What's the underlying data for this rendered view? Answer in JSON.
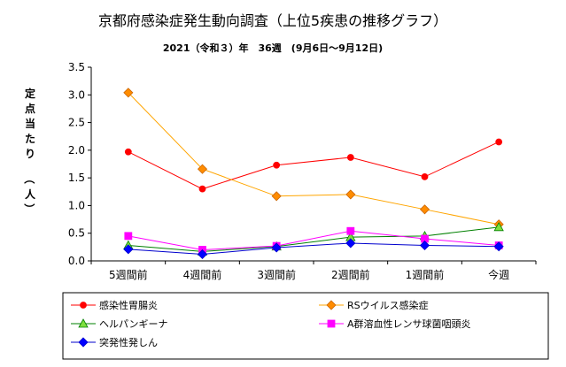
{
  "chart_data": {
    "type": "line",
    "title": "京都府感染症発生動向調査（上位5疾患の推移グラフ）",
    "subtitle": "2021（令和３）年　36週　(9月6日～9月12日)",
    "ylabel_chars": [
      "定",
      "点",
      "当",
      "た",
      "り",
      "（",
      "人",
      "）"
    ],
    "xlabel": "",
    "categories": [
      "5週間前",
      "4週間前",
      "3週間前",
      "2週間前",
      "1週間前",
      "今週"
    ],
    "ylim": [
      0,
      3.5
    ],
    "ytick_labels": [
      "0.0",
      "0.5",
      "1.0",
      "1.5",
      "2.0",
      "2.5",
      "3.0",
      "3.5"
    ],
    "grid": false,
    "legend_position": "bottom",
    "series": [
      {
        "name": "感染性胃腸炎",
        "color": "#ff0000",
        "marker": "circle",
        "marker_fill": "#ff0000",
        "values": [
          1.97,
          1.3,
          1.73,
          1.87,
          1.52,
          2.15
        ]
      },
      {
        "name": "RSウイルス感染症",
        "color": "#ffa500",
        "marker": "diamond",
        "marker_fill": "#ff8c00",
        "values": [
          3.04,
          1.66,
          1.17,
          1.2,
          0.93,
          0.66
        ]
      },
      {
        "name": "ヘルパンギーナ",
        "color": "#008000",
        "marker": "triangle",
        "marker_fill": "#7fdf3f",
        "values": [
          0.28,
          0.17,
          0.26,
          0.43,
          0.45,
          0.61
        ]
      },
      {
        "name": "A群溶血性レンサ球菌咽頭炎",
        "color": "#ff00ff",
        "marker": "square",
        "marker_fill": "#ff00ff",
        "values": [
          0.45,
          0.2,
          0.27,
          0.54,
          0.4,
          0.28
        ]
      },
      {
        "name": "突発性発しん",
        "color": "#0000cd",
        "marker": "diamond",
        "marker_fill": "#0000ff",
        "values": [
          0.21,
          0.12,
          0.24,
          0.32,
          0.28,
          0.26
        ]
      }
    ]
  }
}
